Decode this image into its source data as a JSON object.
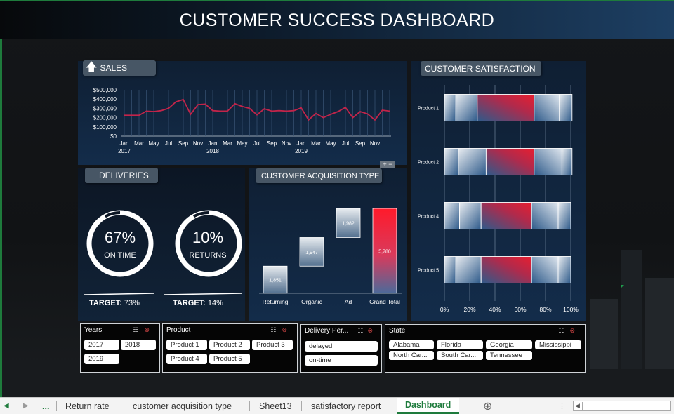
{
  "title": "CUSTOMER SUCCESS DASHBOARD",
  "sales": {
    "title": "SALES",
    "chart_data": {
      "type": "line",
      "ylim": [
        0,
        500000
      ],
      "y_ticks": [
        "$500,000",
        "$400,000",
        "$300,000",
        "$200,000",
        "$100,000",
        "$0"
      ],
      "x_month_labels": [
        "Jan",
        "Mar",
        "May",
        "Jul",
        "Sep",
        "Nov",
        "Jan",
        "Mar",
        "May",
        "Jul",
        "Sep",
        "Nov",
        "Jan",
        "Mar",
        "May",
        "Jul",
        "Sep",
        "Nov"
      ],
      "x_year_labels": [
        "2017",
        "2018",
        "2019"
      ],
      "values": [
        225000,
        225000,
        225000,
        270000,
        265000,
        275000,
        300000,
        370000,
        395000,
        235000,
        340000,
        345000,
        275000,
        270000,
        270000,
        350000,
        320000,
        300000,
        230000,
        295000,
        270000,
        275000,
        270000,
        275000,
        305000,
        175000,
        245000,
        200000,
        235000,
        265000,
        310000,
        200000,
        265000,
        240000,
        175000,
        280000,
        270000
      ],
      "color": "#c2244a"
    }
  },
  "deliveries": {
    "title": "DELIVERIES",
    "on_time": {
      "pct": "67%",
      "label": "ON TIME",
      "fraction": 0.67,
      "target_label": "TARGET:",
      "target_value": "73%"
    },
    "returns": {
      "pct": "10%",
      "label": "RETURNS",
      "fraction": 0.1,
      "target_label": "TARGET:",
      "target_value": "14%"
    }
  },
  "acquisition": {
    "title": "CUSTOMER ACQUISITION TYPE",
    "chart_data": {
      "type": "bar",
      "subtype": "waterfall",
      "categories": [
        "Returning",
        "Organic",
        "Ad",
        "Grand Total"
      ],
      "values": [
        1851,
        1947,
        1982,
        5780
      ],
      "value_labels": [
        "1,851",
        "1,947",
        "1,982",
        "5,780"
      ]
    }
  },
  "satisfaction": {
    "title": "CUSTOMER SATISFACTION",
    "chart_data": {
      "type": "bar",
      "subtype": "stacked-horizontal-100",
      "categories": [
        "Product 1",
        "Product 2",
        "Product 4",
        "Product 5"
      ],
      "x_ticks": [
        "0%",
        "20%",
        "40%",
        "60%",
        "80%",
        "100%"
      ],
      "segments": [
        [
          9,
          17,
          45,
          20,
          10
        ],
        [
          11,
          22,
          38,
          22,
          8
        ],
        [
          12,
          17,
          40,
          21,
          10
        ],
        [
          9,
          20,
          40,
          21,
          10
        ]
      ]
    }
  },
  "slicers": {
    "years": {
      "title": "Years",
      "items": [
        "2017",
        "2018",
        "2019"
      ]
    },
    "product": {
      "title": "Product",
      "items": [
        "Product 1",
        "Product 2",
        "Product 3",
        "Product 4",
        "Product 5"
      ]
    },
    "delivery": {
      "title": "Delivery Per...",
      "items": [
        "delayed",
        "on-time"
      ]
    },
    "state": {
      "title": "State",
      "items": [
        "Alabama",
        "Florida",
        "Georgia",
        "Mississippi",
        "North Car...",
        "South Car...",
        "Tennessee"
      ]
    }
  },
  "tabs": {
    "ellipsis": "...",
    "items": [
      "Return rate",
      "customer acquisition type",
      "Sheet13",
      "satisfactory report",
      "Dashboard"
    ],
    "active": "Dashboard",
    "add_icon": "plus-circle-icon"
  }
}
